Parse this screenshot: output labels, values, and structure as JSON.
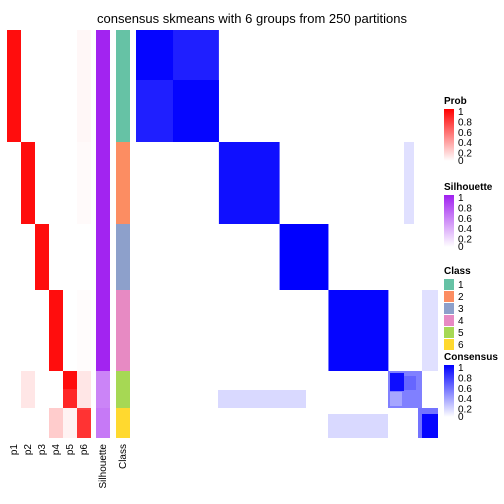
{
  "chart_data": {
    "type": "heatmap",
    "title": "consensus skmeans with 6 groups from 250 partitions",
    "columns": [
      "p1",
      "p2",
      "p3",
      "p4",
      "p5",
      "p6",
      "Silhouette",
      "Class"
    ],
    "prob_groups": [
      {
        "class": 1,
        "p1": 0.95,
        "p2": 0.0,
        "p3": 0.0,
        "p4": 0.0,
        "p5": 0.0,
        "p6": 0.03
      },
      {
        "class": 2,
        "p1": 0.0,
        "p2": 0.95,
        "p3": 0.0,
        "p4": 0.0,
        "p5": 0.0,
        "p6": 0.02
      },
      {
        "class": 3,
        "p1": 0.0,
        "p2": 0.0,
        "p3": 0.95,
        "p4": 0.0,
        "p5": 0.0,
        "p6": 0.0
      },
      {
        "class": 4,
        "p1": 0.0,
        "p2": 0.0,
        "p3": 0.0,
        "p4": 0.95,
        "p5": 0.0,
        "p6": 0.01
      },
      {
        "class": 5,
        "p1": 0.0,
        "p2": 0.1,
        "p3": 0.0,
        "p4": 0.0,
        "p5": 0.85,
        "p6": 0.1
      },
      {
        "class": 6,
        "p1": 0.0,
        "p2": 0.0,
        "p3": 0.0,
        "p4": 0.2,
        "p5": 0.05,
        "p6": 0.75
      }
    ],
    "class_colors": [
      "#66C2A5",
      "#FC8D62",
      "#8DA0CB",
      "#E78AC3",
      "#A6D854",
      "#FFD92F"
    ],
    "consensus_high_color": "#0000FF",
    "prob_high_color": "#FF0000",
    "silhouette_high_color": "#A020F0",
    "legends": [
      {
        "title": "Prob",
        "ticks": [
          "1",
          "0.8",
          "0.6",
          "0.4",
          "0.2",
          "0"
        ]
      },
      {
        "title": "Silhouette",
        "ticks": [
          "1",
          "0.8",
          "0.6",
          "0.4",
          "0.2",
          "0"
        ]
      },
      {
        "title": "Class",
        "items": [
          "1",
          "2",
          "3",
          "4",
          "5",
          "6"
        ]
      },
      {
        "title": "Consensus",
        "ticks": [
          "1",
          "0.8",
          "0.6",
          "0.4",
          "0.2",
          "0"
        ]
      }
    ]
  }
}
